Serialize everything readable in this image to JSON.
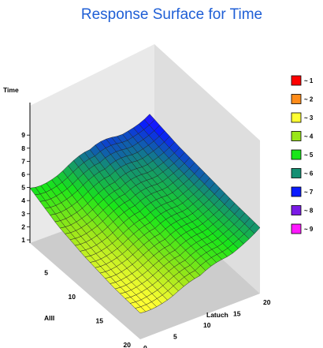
{
  "chart_data": {
    "type": "surface",
    "title": "Response Surface for Time",
    "z_label": "Time",
    "x_label": "AIII",
    "y_label": "Latuch",
    "z_ticks": [
      "1",
      "2",
      "3",
      "4",
      "5",
      "6",
      "7",
      "8",
      "9"
    ],
    "x_ticks": [
      "5",
      "10",
      "15",
      "20"
    ],
    "y_ticks": [
      "0",
      "5",
      "10",
      "15",
      "20"
    ],
    "x_range": [
      0,
      20
    ],
    "y_range": [
      0,
      20
    ],
    "z_range": [
      1,
      9
    ],
    "grid": {
      "nx": 22,
      "ny": 22
    },
    "surface_samples": {
      "note_axis_order": "rows along AIII from 0 to 20, columns along Latuch from 0 to 20",
      "AIII": [
        0,
        5,
        10,
        15,
        20
      ],
      "Latuch": [
        0,
        5,
        10,
        15,
        20
      ],
      "Time": [
        [
          5.2,
          4.4,
          4.2,
          5.2,
          7.3
        ],
        [
          4.2,
          3.6,
          3.5,
          4.6,
          6.8
        ],
        [
          3.6,
          3.1,
          3.1,
          4.2,
          6.5
        ],
        [
          3.2,
          2.8,
          2.8,
          4.0,
          6.2
        ],
        [
          3.0,
          2.6,
          2.7,
          3.9,
          6.0
        ]
      ]
    },
    "legend": [
      {
        "label": "~ 1",
        "color": "#ff0000"
      },
      {
        "label": "~ 2",
        "color": "#ff8c1a"
      },
      {
        "label": "~ 3",
        "color": "#ffff33"
      },
      {
        "label": "~ 4",
        "color": "#99e619"
      },
      {
        "label": "~ 5",
        "color": "#19e619"
      },
      {
        "label": "~ 6",
        "color": "#148f73"
      },
      {
        "label": "~ 7",
        "color": "#0a1aff"
      },
      {
        "label": "~ 8",
        "color": "#7a1ae6"
      },
      {
        "label": "~ 9",
        "color": "#ff19ff"
      }
    ],
    "legend_position": "right",
    "walls": {
      "back_color": "#e9e9e9",
      "floor_color": "#cccccc"
    }
  }
}
